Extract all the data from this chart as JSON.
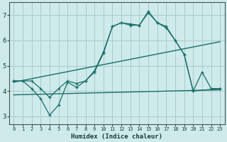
{
  "background_color": "#ceeaea",
  "grid_color": "#aacccc",
  "line_color": "#1a6e6a",
  "xlabel": "Humidex (Indice chaleur)",
  "xlim": [
    -0.5,
    23.5
  ],
  "ylim": [
    2.7,
    7.5
  ],
  "yticks": [
    3,
    4,
    5,
    6,
    7
  ],
  "xticks": [
    0,
    1,
    2,
    3,
    4,
    5,
    6,
    7,
    8,
    9,
    10,
    11,
    12,
    13,
    14,
    15,
    16,
    17,
    18,
    19,
    20,
    21,
    22,
    23
  ],
  "line1_x": [
    0,
    1,
    2,
    3,
    4,
    5,
    6,
    7,
    8,
    9,
    10,
    11,
    12,
    13,
    14,
    15,
    16,
    17,
    18,
    19,
    20,
    21,
    22,
    23
  ],
  "line1_y": [
    4.4,
    4.4,
    4.1,
    3.7,
    3.05,
    3.45,
    4.35,
    4.15,
    4.4,
    4.75,
    5.5,
    6.55,
    6.7,
    6.6,
    6.6,
    7.15,
    6.7,
    6.5,
    6.0,
    5.45,
    4.0,
    4.75,
    4.1,
    4.1
  ],
  "line2_x": [
    0,
    2,
    3,
    4,
    5,
    6,
    7,
    8,
    9,
    10,
    11,
    12,
    13,
    14,
    15,
    16,
    17,
    18,
    19,
    20,
    23
  ],
  "line2_y": [
    4.4,
    4.4,
    4.1,
    3.75,
    4.1,
    4.4,
    4.3,
    4.4,
    4.8,
    5.55,
    6.55,
    6.7,
    6.65,
    6.6,
    7.1,
    6.7,
    6.55,
    6.0,
    5.45,
    4.0,
    4.1
  ],
  "line3_x": [
    0,
    23
  ],
  "line3_y": [
    4.35,
    5.95
  ],
  "line4_x": [
    0,
    23
  ],
  "line4_y": [
    3.85,
    4.05
  ]
}
